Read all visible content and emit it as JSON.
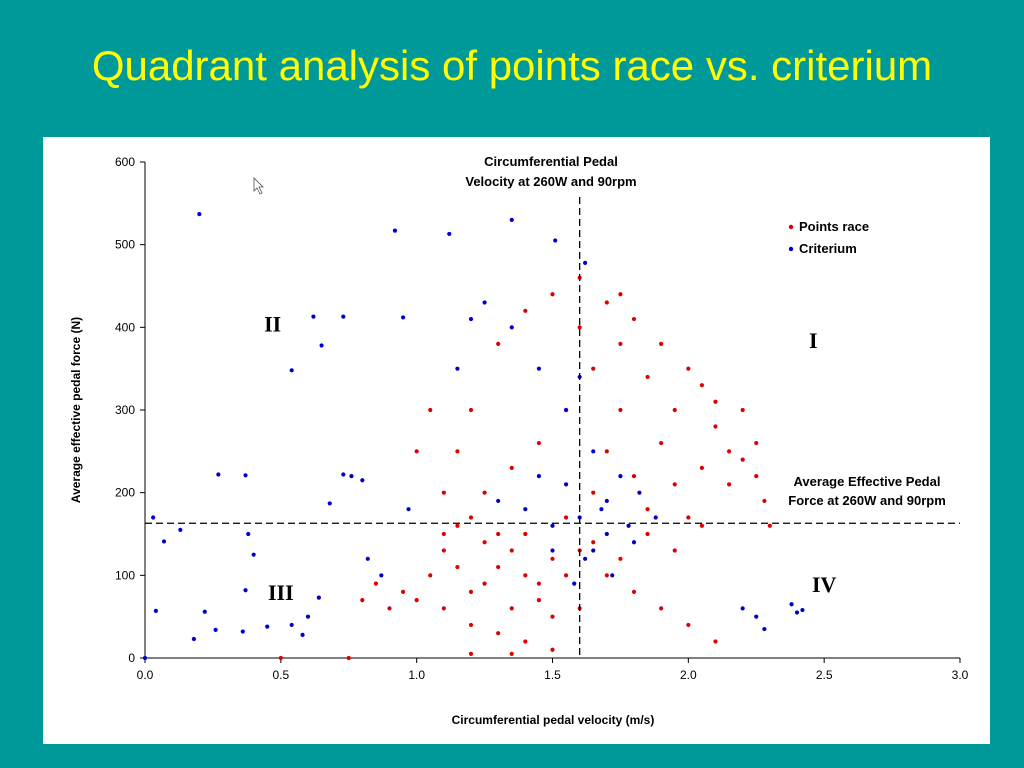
{
  "slide": {
    "title": "Quadrant analysis of points race vs. criterium"
  },
  "chart_data": {
    "type": "scatter",
    "title": "",
    "xlabel": "Circumferential pedal velocity (m/s)",
    "ylabel": "Average effective pedal force (N)",
    "xlim": [
      0.0,
      3.0
    ],
    "ylim": [
      0,
      600
    ],
    "xticks": [
      0.0,
      0.5,
      1.0,
      1.5,
      2.0,
      2.5,
      3.0
    ],
    "xtick_labels": [
      "0.0",
      "0.5",
      "1.0",
      "1.5",
      "2.0",
      "2.5",
      "3.0"
    ],
    "yticks": [
      0,
      100,
      200,
      300,
      400,
      500,
      600
    ],
    "ytick_labels": [
      "0",
      "100",
      "200",
      "300",
      "400",
      "500",
      "600"
    ],
    "grid": false,
    "legend_position": "top-right",
    "reference_lines": [
      {
        "orientation": "vertical",
        "value": 1.6,
        "style": "dashed",
        "label_line1": "Circumferential Pedal",
        "label_line2": "Velocity at 260W and 90rpm"
      },
      {
        "orientation": "horizontal",
        "value": 163,
        "style": "dashed",
        "label_line1": "Average Effective Pedal",
        "label_line2": "Force at 260W and 90rpm"
      }
    ],
    "quadrant_labels": [
      {
        "text": "I",
        "x": 2.46,
        "y": 375
      },
      {
        "text": "II",
        "x": 0.47,
        "y": 395
      },
      {
        "text": "III",
        "x": 0.5,
        "y": 70
      },
      {
        "text": "IV",
        "x": 2.5,
        "y": 80
      }
    ],
    "series": [
      {
        "name": "Points race",
        "color": "#dd0000",
        "points": [
          [
            1.05,
            100
          ],
          [
            1.1,
            130
          ],
          [
            1.15,
            160
          ],
          [
            1.2,
            80
          ],
          [
            1.25,
            140
          ],
          [
            1.3,
            110
          ],
          [
            1.35,
            60
          ],
          [
            1.4,
            150
          ],
          [
            1.45,
            90
          ],
          [
            1.5,
            120
          ],
          [
            1.55,
            170
          ],
          [
            1.6,
            130
          ],
          [
            1.65,
            200
          ],
          [
            1.7,
            250
          ],
          [
            1.75,
            300
          ],
          [
            1.8,
            220
          ],
          [
            1.85,
            180
          ],
          [
            1.9,
            260
          ],
          [
            1.95,
            210
          ],
          [
            2.0,
            170
          ],
          [
            2.05,
            230
          ],
          [
            2.1,
            280
          ],
          [
            2.15,
            250
          ],
          [
            2.2,
            240
          ],
          [
            2.25,
            220
          ],
          [
            1.2,
            40
          ],
          [
            1.3,
            30
          ],
          [
            1.4,
            20
          ],
          [
            1.5,
            50
          ],
          [
            1.1,
            60
          ],
          [
            1.0,
            70
          ],
          [
            0.95,
            80
          ],
          [
            0.9,
            60
          ],
          [
            1.6,
            400
          ],
          [
            1.7,
            430
          ],
          [
            1.8,
            410
          ],
          [
            1.9,
            380
          ],
          [
            2.0,
            350
          ],
          [
            2.05,
            330
          ],
          [
            1.5,
            440
          ],
          [
            1.4,
            420
          ],
          [
            1.3,
            380
          ],
          [
            1.2,
            300
          ],
          [
            1.15,
            250
          ],
          [
            1.1,
            200
          ],
          [
            1.25,
            200
          ],
          [
            1.35,
            230
          ],
          [
            1.45,
            260
          ],
          [
            1.55,
            300
          ],
          [
            1.65,
            350
          ],
          [
            1.75,
            380
          ],
          [
            1.85,
            340
          ],
          [
            1.95,
            300
          ],
          [
            2.1,
            310
          ],
          [
            2.2,
            300
          ],
          [
            2.25,
            260
          ],
          [
            1.7,
            100
          ],
          [
            1.8,
            80
          ],
          [
            1.9,
            60
          ],
          [
            2.0,
            40
          ],
          [
            2.1,
            20
          ],
          [
            1.6,
            60
          ],
          [
            1.5,
            10
          ],
          [
            1.35,
            5
          ],
          [
            1.2,
            5
          ],
          [
            0.85,
            90
          ],
          [
            0.8,
            70
          ],
          [
            0.75,
            0
          ],
          [
            0.5,
            0
          ],
          [
            1.0,
            250
          ],
          [
            1.05,
            300
          ],
          [
            1.6,
            460
          ],
          [
            1.75,
            440
          ],
          [
            2.15,
            210
          ],
          [
            2.3,
            160
          ],
          [
            2.28,
            190
          ],
          [
            1.15,
            110
          ],
          [
            1.25,
            90
          ],
          [
            1.35,
            130
          ],
          [
            1.45,
            70
          ],
          [
            1.55,
            100
          ],
          [
            1.65,
            140
          ],
          [
            1.75,
            120
          ],
          [
            1.85,
            150
          ],
          [
            1.95,
            130
          ],
          [
            2.05,
            160
          ],
          [
            1.1,
            150
          ],
          [
            1.2,
            170
          ],
          [
            1.3,
            150
          ],
          [
            1.4,
            100
          ]
        ]
      },
      {
        "name": "Criterium",
        "color": "#0000cc",
        "points": [
          [
            0.2,
            537
          ],
          [
            0.92,
            517
          ],
          [
            1.12,
            513
          ],
          [
            1.35,
            530
          ],
          [
            1.51,
            505
          ],
          [
            1.62,
            478
          ],
          [
            0.62,
            413
          ],
          [
            0.73,
            413
          ],
          [
            0.95,
            412
          ],
          [
            0.65,
            378
          ],
          [
            0.54,
            348
          ],
          [
            0.27,
            222
          ],
          [
            0.37,
            221
          ],
          [
            0.73,
            222
          ],
          [
            0.76,
            220
          ],
          [
            0.8,
            215
          ],
          [
            0.68,
            187
          ],
          [
            0.03,
            170
          ],
          [
            0.07,
            141
          ],
          [
            0.13,
            155
          ],
          [
            0.38,
            150
          ],
          [
            0.4,
            125
          ],
          [
            0.04,
            57
          ],
          [
            0.0,
            0
          ],
          [
            0.18,
            23
          ],
          [
            0.22,
            56
          ],
          [
            0.26,
            34
          ],
          [
            0.36,
            32
          ],
          [
            0.37,
            82
          ],
          [
            0.45,
            38
          ],
          [
            0.6,
            50
          ],
          [
            0.64,
            73
          ],
          [
            0.54,
            40
          ],
          [
            0.58,
            28
          ],
          [
            0.87,
            100
          ],
          [
            0.82,
            120
          ],
          [
            0.97,
            180
          ],
          [
            2.2,
            60
          ],
          [
            2.25,
            50
          ],
          [
            2.28,
            35
          ],
          [
            2.38,
            65
          ],
          [
            2.4,
            55
          ],
          [
            2.42,
            58
          ],
          [
            1.6,
            170
          ],
          [
            1.7,
            150
          ],
          [
            1.8,
            140
          ],
          [
            1.5,
            160
          ],
          [
            1.4,
            180
          ],
          [
            1.65,
            250
          ],
          [
            1.75,
            220
          ],
          [
            1.55,
            300
          ],
          [
            1.45,
            350
          ],
          [
            1.35,
            400
          ],
          [
            1.25,
            430
          ],
          [
            1.2,
            410
          ],
          [
            1.15,
            350
          ],
          [
            1.62,
            120
          ],
          [
            1.72,
            100
          ],
          [
            1.58,
            90
          ],
          [
            1.82,
            200
          ],
          [
            1.5,
            130
          ],
          [
            1.45,
            220
          ],
          [
            1.3,
            190
          ],
          [
            1.68,
            180
          ],
          [
            1.78,
            160
          ],
          [
            1.88,
            170
          ],
          [
            1.6,
            340
          ],
          [
            1.55,
            210
          ],
          [
            1.65,
            130
          ],
          [
            1.7,
            190
          ]
        ]
      }
    ]
  }
}
